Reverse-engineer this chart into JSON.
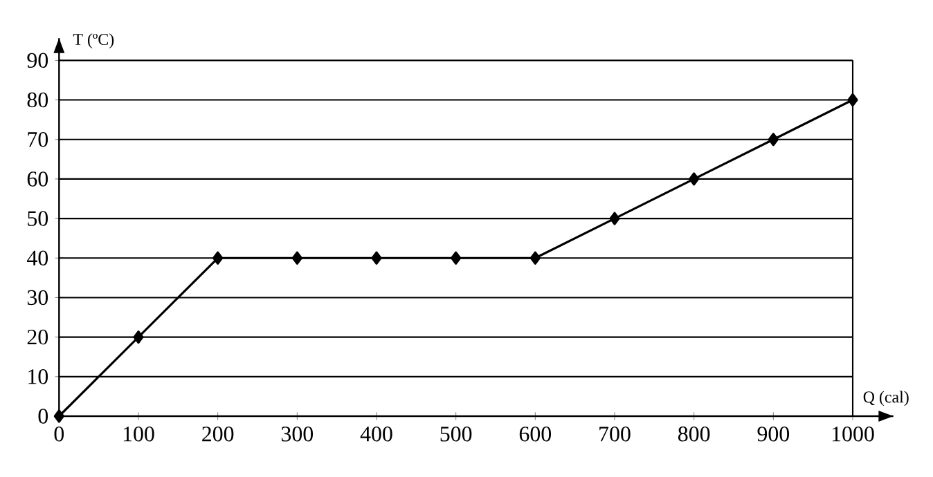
{
  "chart_data": {
    "type": "line",
    "xlabel": "Q (cal)",
    "ylabel": "T (ºC)",
    "x": [
      0,
      100,
      200,
      300,
      400,
      500,
      600,
      700,
      800,
      900,
      1000
    ],
    "series": [
      {
        "color": "#000000",
        "values": [
          0,
          20,
          40,
          40,
          40,
          40,
          40,
          50,
          60,
          70,
          80
        ]
      }
    ],
    "xlim": [
      0,
      1000
    ],
    "ylim": [
      0,
      90
    ],
    "xticks": [
      0,
      100,
      200,
      300,
      400,
      500,
      600,
      700,
      800,
      900,
      1000
    ],
    "yticks": [
      0,
      10,
      20,
      30,
      40,
      50,
      60,
      70,
      80,
      90
    ],
    "grid": "y",
    "marker": "diamond",
    "line_style": "solid"
  }
}
